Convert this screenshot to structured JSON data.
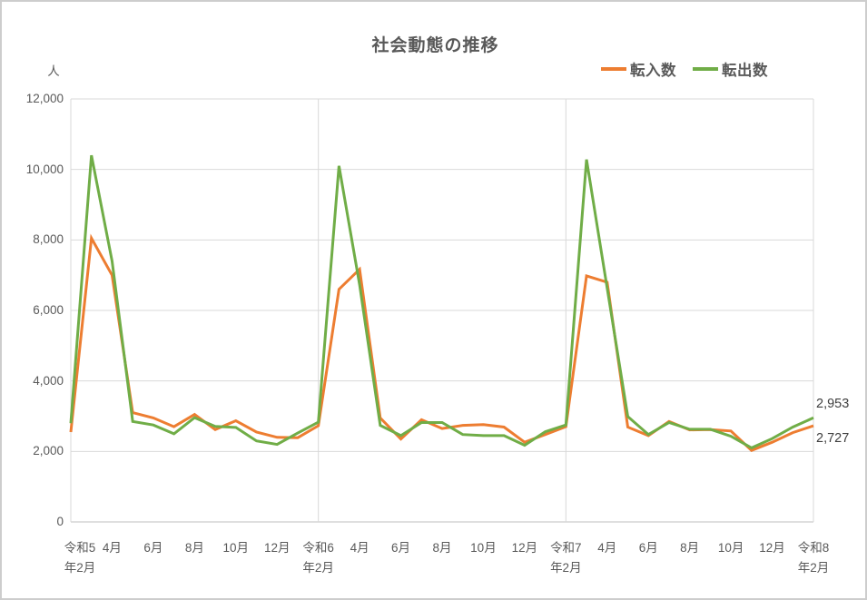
{
  "chart": {
    "title": "社会動態の推移",
    "y_unit": "人"
  },
  "chart_data": {
    "type": "line",
    "title": "社会動態の推移",
    "ylabel": "人",
    "ylim": [
      0,
      12000
    ],
    "y_tick_step": 2000,
    "y_ticks": [
      "12,000",
      "10,000",
      "8,000",
      "6,000",
      "4,000",
      "2,000",
      "0"
    ],
    "x_description": "Monthly data, 37 points from Reiwa5-Feb to Reiwa8-Feb; tick labels every 2 months",
    "x_tick_labels": [
      {
        "l1": "令和5",
        "l2": "年2月"
      },
      {
        "l1": "4月",
        "l2": ""
      },
      {
        "l1": "6月",
        "l2": ""
      },
      {
        "l1": "8月",
        "l2": ""
      },
      {
        "l1": "10月",
        "l2": ""
      },
      {
        "l1": "12月",
        "l2": ""
      },
      {
        "l1": "令和6",
        "l2": "年2月"
      },
      {
        "l1": "4月",
        "l2": ""
      },
      {
        "l1": "6月",
        "l2": ""
      },
      {
        "l1": "8月",
        "l2": ""
      },
      {
        "l1": "10月",
        "l2": ""
      },
      {
        "l1": "12月",
        "l2": ""
      },
      {
        "l1": "令和7",
        "l2": "年2月"
      },
      {
        "l1": "4月",
        "l2": ""
      },
      {
        "l1": "6月",
        "l2": ""
      },
      {
        "l1": "8月",
        "l2": ""
      },
      {
        "l1": "10月",
        "l2": ""
      },
      {
        "l1": "12月",
        "l2": ""
      },
      {
        "l1": "令和8",
        "l2": "年2月"
      }
    ],
    "grid": true,
    "vertical_gridlines_at_month_index": [
      0,
      12,
      24,
      36
    ],
    "legend_position": "top-right",
    "series": [
      {
        "name": "転入数",
        "id": "move-in",
        "color": "#ED7D31",
        "end_label": "2,727",
        "values": [
          2550,
          8050,
          7000,
          3100,
          2950,
          2700,
          3050,
          2620,
          2870,
          2550,
          2400,
          2390,
          2730,
          6600,
          7170,
          2950,
          2350,
          2900,
          2650,
          2740,
          2760,
          2690,
          2260,
          2480,
          2700,
          6980,
          6800,
          2690,
          2450,
          2850,
          2610,
          2620,
          2580,
          2030,
          2260,
          2535,
          2727
        ]
      },
      {
        "name": "転出数",
        "id": "move-out",
        "color": "#70AD47",
        "end_label": "2,953",
        "values": [
          2800,
          10400,
          7400,
          2850,
          2750,
          2500,
          2960,
          2710,
          2680,
          2300,
          2200,
          2520,
          2830,
          10100,
          6730,
          2740,
          2450,
          2820,
          2820,
          2480,
          2450,
          2450,
          2175,
          2560,
          2750,
          10280,
          6635,
          2990,
          2480,
          2820,
          2630,
          2630,
          2430,
          2100,
          2365,
          2690,
          2953
        ]
      }
    ],
    "colors": {
      "text": "#595959",
      "grid": "#D9D9D9",
      "axis": "#BFBFBF",
      "end_label_text": "#3F3F3F"
    }
  }
}
